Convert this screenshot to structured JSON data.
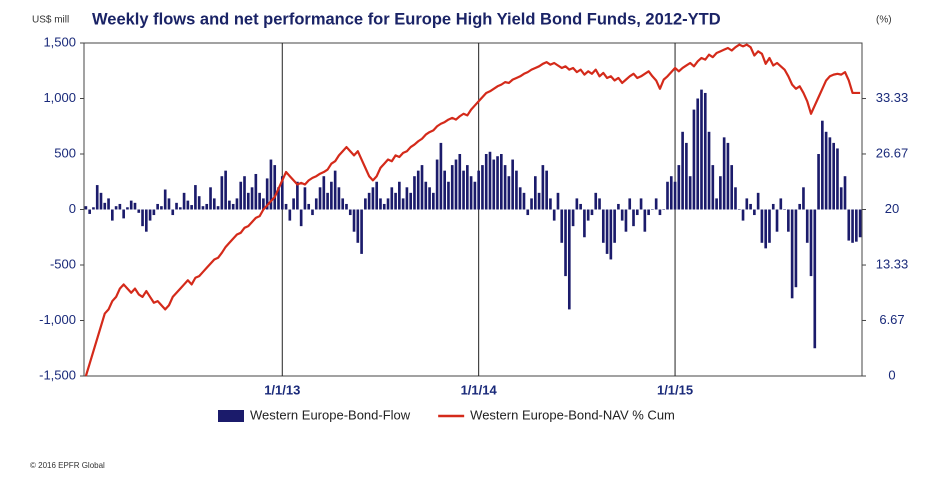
{
  "chart_data": {
    "type": "bar_line",
    "title": "Weekly flows and net performance for Europe High Yield Bond Funds, 2012-YTD",
    "ylabel": "US$ mill",
    "y2label": "(%)",
    "copyright": "© 2016 EPFR Global",
    "xgrid": true,
    "legend": "bottom",
    "ylim": [
      -1500,
      1500
    ],
    "yticks": [
      {
        "value": -1500,
        "label": "-1,500"
      },
      {
        "value": -1000,
        "label": "-1,000"
      },
      -500,
      0,
      500,
      {
        "value": 1000,
        "label": "1,000"
      },
      {
        "value": 1500,
        "label": "1,500"
      }
    ],
    "y2lim": [
      0,
      40
    ],
    "y2ticks": [
      0,
      6.67,
      13.33,
      20,
      26.67,
      33.33
    ],
    "categories": [
      null,
      null,
      null,
      null,
      null,
      null,
      null,
      null,
      null,
      null,
      null,
      null,
      null,
      null,
      null,
      null,
      null,
      null,
      null,
      null,
      null,
      null,
      null,
      null,
      null,
      null,
      null,
      null,
      null,
      null,
      null,
      null,
      null,
      null,
      null,
      null,
      null,
      null,
      null,
      null,
      null,
      null,
      null,
      null,
      null,
      null,
      null,
      null,
      null,
      null,
      null,
      null,
      "1/1/13",
      null,
      null,
      null,
      null,
      null,
      null,
      null,
      null,
      null,
      null,
      null,
      null,
      null,
      null,
      null,
      null,
      null,
      null,
      null,
      null,
      null,
      null,
      null,
      null,
      null,
      null,
      null,
      null,
      null,
      null,
      null,
      null,
      null,
      null,
      null,
      null,
      null,
      null,
      null,
      null,
      null,
      null,
      null,
      null,
      null,
      null,
      null,
      null,
      null,
      null,
      null,
      "1/1/14",
      null,
      null,
      null,
      null,
      null,
      null,
      null,
      null,
      null,
      null,
      null,
      null,
      null,
      null,
      null,
      null,
      null,
      null,
      null,
      null,
      null,
      null,
      null,
      null,
      null,
      null,
      null,
      null,
      null,
      null,
      null,
      null,
      null,
      null,
      null,
      null,
      null,
      null,
      null,
      null,
      null,
      null,
      null,
      null,
      null,
      null,
      null,
      null,
      null,
      null,
      null,
      "1/1/15",
      null,
      null,
      null,
      null,
      null,
      null,
      null,
      null,
      null,
      null,
      null,
      null,
      null,
      null,
      null,
      null,
      null,
      null,
      null,
      null,
      null,
      null,
      null,
      null,
      null,
      null,
      null,
      null,
      null,
      null,
      null,
      null,
      null,
      null,
      null,
      null,
      null,
      null,
      null,
      null,
      null,
      null,
      null,
      null,
      null,
      null,
      null,
      null,
      null
    ],
    "series": [
      {
        "name": "Western Europe-Bond-Flow",
        "type": "bar",
        "color": "#1b1b6b",
        "values": [
          30,
          -40,
          20,
          220,
          150,
          60,
          100,
          -100,
          30,
          50,
          -80,
          20,
          80,
          60,
          -30,
          -150,
          -200,
          -100,
          -50,
          50,
          30,
          180,
          100,
          -50,
          60,
          20,
          150,
          80,
          40,
          220,
          120,
          30,
          50,
          200,
          100,
          30,
          300,
          350,
          80,
          50,
          100,
          250,
          300,
          150,
          200,
          320,
          150,
          100,
          280,
          450,
          400,
          200,
          300,
          50,
          -100,
          100,
          250,
          -150,
          200,
          50,
          -50,
          100,
          200,
          300,
          150,
          250,
          350,
          200,
          100,
          50,
          -50,
          -200,
          -300,
          -400,
          100,
          150,
          200,
          250,
          100,
          50,
          100,
          200,
          150,
          250,
          100,
          200,
          150,
          300,
          350,
          400,
          250,
          200,
          150,
          450,
          600,
          350,
          250,
          400,
          450,
          500,
          350,
          400,
          300,
          250,
          350,
          400,
          500,
          520,
          450,
          480,
          500,
          400,
          300,
          450,
          350,
          200,
          150,
          -50,
          100,
          300,
          150,
          400,
          350,
          100,
          -100,
          150,
          -300,
          -600,
          -900,
          -150,
          100,
          50,
          -250,
          -100,
          -50,
          150,
          100,
          -300,
          -400,
          -450,
          -300,
          50,
          -100,
          -200,
          100,
          -150,
          -50,
          100,
          -200,
          -50,
          0,
          100,
          -50,
          0,
          250,
          300,
          250,
          400,
          700,
          600,
          300,
          900,
          1000,
          1080,
          1050,
          700,
          400,
          100,
          300,
          650,
          600,
          400,
          200,
          0,
          -100,
          100,
          50,
          -50,
          150,
          -300,
          -350,
          -300,
          50,
          -200,
          100,
          0,
          -200,
          -800,
          -700,
          50,
          200,
          -300,
          -600,
          -1250,
          500,
          800,
          700,
          650,
          600,
          550,
          200,
          300,
          -280,
          -300,
          -290,
          -250
        ]
      },
      {
        "name": "Western Europe-Bond-NAV % Cum",
        "type": "line",
        "axis": "y2",
        "color": "#d42a1a",
        "values": [
          0,
          1.5,
          3,
          4.5,
          6,
          7.5,
          8,
          9,
          9.5,
          10.5,
          11,
          10.5,
          10,
          10.5,
          9.8,
          9.5,
          10.2,
          9.5,
          8.8,
          9,
          8.5,
          8,
          8.5,
          9.5,
          10,
          10.5,
          11,
          11.5,
          11,
          11.8,
          12,
          12.5,
          13,
          13.5,
          14,
          14.2,
          14.8,
          15.5,
          16,
          16.5,
          17,
          17.2,
          17.8,
          18,
          18.5,
          19,
          19.2,
          20,
          20.5,
          21,
          21.5,
          22.5,
          23.5,
          24.5,
          24,
          23.5,
          23,
          23.2,
          23,
          23.5,
          23.8,
          24,
          24.3,
          24.5,
          24.8,
          25.5,
          25.8,
          26.5,
          27,
          27.5,
          27,
          26.5,
          27,
          26,
          25,
          24,
          23.5,
          24,
          25,
          25.5,
          26,
          25.8,
          26.5,
          26.3,
          26.8,
          27,
          27.5,
          27.8,
          28.2,
          28.5,
          29,
          29.3,
          29.5,
          30,
          30.3,
          30.5,
          30.8,
          31,
          30.8,
          31.2,
          31.5,
          31.3,
          32,
          32.5,
          33,
          33.5,
          34,
          34.2,
          34.5,
          34.8,
          35,
          35.3,
          35.2,
          35.6,
          35.8,
          36,
          36.3,
          36.5,
          36.8,
          37,
          37.2,
          37.5,
          37.7,
          37.4,
          37.6,
          37.3,
          37,
          37.2,
          36.8,
          37,
          36.5,
          36.8,
          36.2,
          36.6,
          36.3,
          36.8,
          36,
          36.4,
          35.8,
          36,
          35.5,
          35.8,
          35.2,
          35.6,
          36,
          36.3,
          35.8,
          36,
          36.3,
          36.6,
          36,
          35.5,
          34.5,
          35.6,
          36,
          36.5,
          37,
          36.6,
          37,
          37.3,
          37.6,
          37.2,
          37.8,
          38.2,
          38,
          38.6,
          38.3,
          38.8,
          39,
          39.2,
          39.4,
          39.1,
          39.5,
          39.8,
          39.6,
          39.8,
          39.5,
          38.5,
          39,
          38.7,
          37.5,
          38.2,
          37.3,
          37.6,
          37.2,
          36.8,
          36,
          35,
          34.5,
          34.8,
          34,
          33,
          31.5,
          32.5,
          33.5,
          34.5,
          35.5,
          36,
          36.2,
          36.3,
          36.2,
          36.5,
          35.5,
          34,
          34,
          34
        ]
      }
    ]
  }
}
